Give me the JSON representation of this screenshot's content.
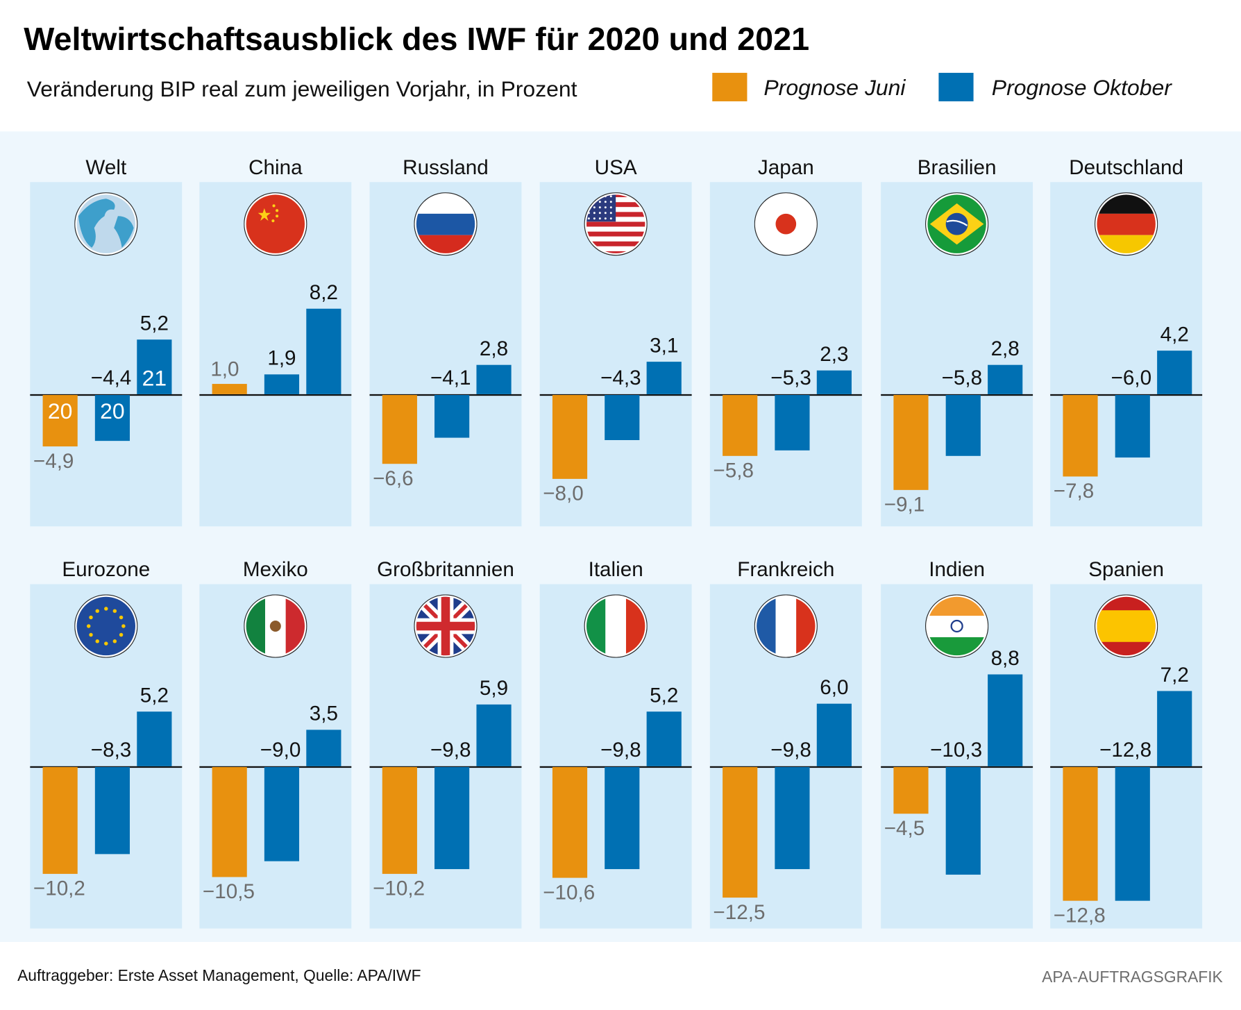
{
  "title": "Weltwirtschaftsausblick des IWF für 2020 und 2021",
  "subtitle": "Veränderung BIP real zum jeweiligen Vorjahr, in Prozent",
  "legend": [
    {
      "label": "Prognose Juni",
      "color": "#e8910f"
    },
    {
      "label": "Prognose Oktober",
      "color": "#0070b3"
    }
  ],
  "footer": {
    "source": "Auftraggeber: Erste Asset Management, Quelle: APA/IWF",
    "credit": "APA-AUFTRAGSGRAFIK"
  },
  "chart_data": {
    "type": "bar",
    "series": [
      {
        "name": "Prognose Juni",
        "year": "2020",
        "color": "#e8910f"
      },
      {
        "name": "Prognose Oktober",
        "year": "2020",
        "color": "#0070b3"
      },
      {
        "name": "Prognose Oktober",
        "year": "2021",
        "color": "#0070b3"
      }
    ],
    "year_labels": [
      "20",
      "20",
      "21"
    ],
    "panels": [
      {
        "name": "Welt",
        "flag": "globe-icon",
        "values": [
          -4.9,
          -4.4,
          5.2
        ],
        "labels": [
          "−4,9",
          "−4,4",
          "5,2"
        ]
      },
      {
        "name": "China",
        "flag": "china-flag-icon",
        "values": [
          1.0,
          1.9,
          8.2
        ],
        "labels": [
          "1,0",
          "1,9",
          "8,2"
        ]
      },
      {
        "name": "Russland",
        "flag": "russia-flag-icon",
        "values": [
          -6.6,
          -4.1,
          2.8
        ],
        "labels": [
          "−6,6",
          "−4,1",
          "2,8"
        ]
      },
      {
        "name": "USA",
        "flag": "usa-flag-icon",
        "values": [
          -8.0,
          -4.3,
          3.1
        ],
        "labels": [
          "−8,0",
          "−4,3",
          "3,1"
        ]
      },
      {
        "name": "Japan",
        "flag": "japan-flag-icon",
        "values": [
          -5.8,
          -5.3,
          2.3
        ],
        "labels": [
          "−5,8",
          "−5,3",
          "2,3"
        ]
      },
      {
        "name": "Brasilien",
        "flag": "brazil-flag-icon",
        "values": [
          -9.1,
          -5.8,
          2.8
        ],
        "labels": [
          "−9,1",
          "−5,8",
          "2,8"
        ]
      },
      {
        "name": "Deutschland",
        "flag": "germany-flag-icon",
        "values": [
          -7.8,
          -6.0,
          4.2
        ],
        "labels": [
          "−7,8",
          "−6,0",
          "4,2"
        ]
      },
      {
        "name": "Eurozone",
        "flag": "eu-flag-icon",
        "values": [
          -10.2,
          -8.3,
          5.2
        ],
        "labels": [
          "−10,2",
          "−8,3",
          "5,2"
        ]
      },
      {
        "name": "Mexiko",
        "flag": "mexico-flag-icon",
        "values": [
          -10.5,
          -9.0,
          3.5
        ],
        "labels": [
          "−10,5",
          "−9,0",
          "3,5"
        ]
      },
      {
        "name": "Großbritannien",
        "flag": "uk-flag-icon",
        "values": [
          -10.2,
          -9.8,
          5.9
        ],
        "labels": [
          "−10,2",
          "−9,8",
          "5,9"
        ]
      },
      {
        "name": "Italien",
        "flag": "italy-flag-icon",
        "values": [
          -10.6,
          -9.8,
          5.2
        ],
        "labels": [
          "−10,6",
          "−9,8",
          "5,2"
        ]
      },
      {
        "name": "Frankreich",
        "flag": "france-flag-icon",
        "values": [
          -12.5,
          -9.8,
          6.0
        ],
        "labels": [
          "−12,5",
          "−9,8",
          "6,0"
        ]
      },
      {
        "name": "Indien",
        "flag": "india-flag-icon",
        "values": [
          -4.5,
          -10.3,
          8.8
        ],
        "labels": [
          "−4,5",
          "−10,3",
          "8,8"
        ]
      },
      {
        "name": "Spanien",
        "flag": "spain-flag-icon",
        "values": [
          -12.8,
          -12.8,
          7.2
        ],
        "labels": [
          "−12,8",
          "−12,8",
          "7,2"
        ]
      }
    ]
  }
}
